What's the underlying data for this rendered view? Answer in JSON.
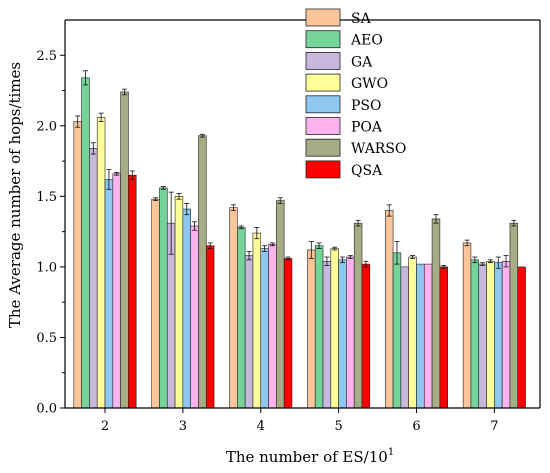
{
  "chart_data": {
    "type": "bar",
    "xlabel": "The number of ES/10",
    "xlabel_sup": "1",
    "ylabel": "The Average number of hops/times",
    "categories": [
      "2",
      "3",
      "4",
      "5",
      "6",
      "7"
    ],
    "ylim": [
      0,
      2.75
    ],
    "yticks": [
      "0.0",
      "0.5",
      "1.0",
      "1.5",
      "2.0",
      "2.5"
    ],
    "legend_position": "top-right",
    "series": [
      {
        "name": "SA",
        "color": "#fdc59a",
        "values": [
          2.03,
          1.48,
          1.42,
          1.12,
          1.4,
          1.17
        ],
        "errors": [
          0.04,
          0.01,
          0.02,
          0.06,
          0.04,
          0.02
        ]
      },
      {
        "name": "AEO",
        "color": "#75d49a",
        "values": [
          2.34,
          1.56,
          1.28,
          1.15,
          1.1,
          1.05
        ],
        "errors": [
          0.05,
          0.01,
          0.01,
          0.02,
          0.08,
          0.02
        ]
      },
      {
        "name": "GA",
        "color": "#c8b8dc",
        "values": [
          1.84,
          1.31,
          1.08,
          1.04,
          1.0,
          1.02
        ],
        "errors": [
          0.04,
          0.22,
          0.03,
          0.03,
          0.0,
          0.01
        ]
      },
      {
        "name": "GWO",
        "color": "#ffff99",
        "values": [
          2.06,
          1.5,
          1.24,
          1.13,
          1.07,
          1.04
        ],
        "errors": [
          0.03,
          0.02,
          0.04,
          0.01,
          0.01,
          0.01
        ]
      },
      {
        "name": "PSO",
        "color": "#8ec8f0",
        "values": [
          1.62,
          1.41,
          1.13,
          1.05,
          1.02,
          1.03
        ],
        "errors": [
          0.07,
          0.04,
          0.02,
          0.02,
          0.0,
          0.04
        ]
      },
      {
        "name": "POA",
        "color": "#ffb3ee",
        "values": [
          1.66,
          1.29,
          1.16,
          1.07,
          1.02,
          1.04
        ],
        "errors": [
          0.01,
          0.03,
          0.01,
          0.01,
          0.0,
          0.04
        ]
      },
      {
        "name": "WARSO",
        "color": "#a4ad85",
        "values": [
          2.24,
          1.93,
          1.47,
          1.31,
          1.34,
          1.31
        ],
        "errors": [
          0.02,
          0.01,
          0.02,
          0.02,
          0.03,
          0.02
        ]
      },
      {
        "name": "QSA",
        "color": "#ff0000",
        "values": [
          1.65,
          1.15,
          1.06,
          1.02,
          1.0,
          1.0
        ],
        "errors": [
          0.03,
          0.02,
          0.01,
          0.02,
          0.01,
          0.0
        ]
      }
    ]
  }
}
